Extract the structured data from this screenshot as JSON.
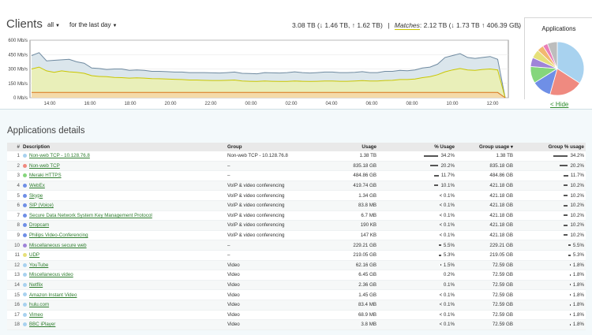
{
  "header": {
    "title": "Clients",
    "filter_all": "all",
    "filter_time": "for the last day",
    "totals_prefix": "3.08 TB (↓ 1.46 TB, ↑ 1.62 TB)",
    "sep": "|",
    "matches_label": "Matches",
    "matches_value": ": 2.12 TB (↓ 1.73 TB ↑ 406.39 GB)"
  },
  "chart_data": {
    "type": "area",
    "y_ticks": [
      "600 Mb/s",
      "450 Mb/s",
      "300 Mb/s",
      "150 Mb/s",
      "0 Mb/s"
    ],
    "ylim": [
      0,
      600
    ],
    "x_ticks": [
      "14:00",
      "16:00",
      "18:00",
      "20:00",
      "22:00",
      "00:00",
      "02:00",
      "04:00",
      "06:00",
      "08:00",
      "10:00",
      "12:00"
    ],
    "series": [
      {
        "values": [
          440,
          470,
          385,
          390,
          395,
          400,
          375,
          360,
          310,
          305,
          295,
          300,
          300,
          285,
          290,
          285,
          275,
          275,
          272,
          268,
          268,
          262,
          262,
          262,
          260,
          258,
          262,
          268,
          255,
          252,
          250,
          262,
          260,
          258,
          262,
          270,
          262,
          258,
          262,
          268,
          268,
          262,
          262,
          265,
          272,
          262,
          262,
          275,
          275,
          285,
          282,
          290,
          310,
          320,
          350,
          420,
          440,
          460,
          420,
          410,
          420,
          430,
          400,
          0
        ]
      },
      {
        "values": [
          300,
          320,
          280,
          265,
          280,
          270,
          265,
          255,
          230,
          222,
          220,
          212,
          210,
          205,
          208,
          205,
          200,
          198,
          195,
          192,
          190,
          185,
          185,
          182,
          180,
          180,
          182,
          185,
          175,
          172,
          170,
          175,
          172,
          170,
          170,
          175,
          172,
          170,
          172,
          175,
          175,
          172,
          172,
          175,
          178,
          175,
          175,
          180,
          182,
          190,
          190,
          195,
          210,
          220,
          240,
          270,
          290,
          305,
          290,
          285,
          295,
          300,
          290,
          0
        ]
      },
      {
        "values": [
          55,
          55,
          55,
          55,
          55,
          55,
          55,
          55,
          55,
          55,
          55,
          55,
          55,
          55,
          55,
          55,
          55,
          55,
          55,
          55,
          55,
          55,
          55,
          55,
          55,
          55,
          55,
          55,
          55,
          55,
          55,
          55,
          55,
          55,
          55,
          55,
          55,
          55,
          55,
          55,
          55,
          55,
          55,
          55,
          55,
          55,
          55,
          55,
          55,
          55,
          55,
          55,
          55,
          55,
          55,
          55,
          55,
          55,
          55,
          55,
          55,
          55,
          55,
          0
        ]
      }
    ]
  },
  "pie": {
    "title": "Applications",
    "slices": [
      {
        "value": 34.2,
        "color": "#a8d2ef"
      },
      {
        "value": 20.2,
        "color": "#ef8a80"
      },
      {
        "value": 11.7,
        "color": "#6f8fe6"
      },
      {
        "value": 10.1,
        "color": "#85d67c"
      },
      {
        "value": 5.5,
        "color": "#9f84d8"
      },
      {
        "value": 5.3,
        "color": "#e6e07a"
      },
      {
        "value": 4.0,
        "color": "#f2b870"
      },
      {
        "value": 3.0,
        "color": "#e97fb9"
      },
      {
        "value": 6.0,
        "color": "#bdbdbd"
      }
    ]
  },
  "hide_label": "< Hide",
  "details": {
    "title": "Applications details",
    "columns": {
      "num": "#",
      "desc": "Description",
      "group": "Group",
      "usage": "Usage",
      "pct_usage": "% Usage",
      "group_usage": "Group usage ▾",
      "group_pct": "Group % usage"
    },
    "rows": [
      {
        "n": "1",
        "color": "#a8d2ef",
        "desc": "Non-web TCP - 10.128.76.8",
        "group": "Non-web TCP - 10.128.76.8",
        "usage": "1.38 TB",
        "pct": "34.2%",
        "bar": 34.2,
        "gusage": "1.38 TB",
        "gpct": "34.2%",
        "gbar": 34.2
      },
      {
        "n": "2",
        "color": "#ef8a80",
        "desc": "Non-web TCP",
        "group": "–",
        "usage": "835.18 GB",
        "pct": "20.2%",
        "bar": 20.2,
        "gusage": "835.18 GB",
        "gpct": "20.2%",
        "gbar": 20.2
      },
      {
        "n": "3",
        "color": "#85d67c",
        "desc": "Meraki HTTPS",
        "group": "–",
        "usage": "484.86 GB",
        "pct": "11.7%",
        "bar": 11.7,
        "gusage": "484.86 GB",
        "gpct": "11.7%",
        "gbar": 11.7
      },
      {
        "n": "4",
        "color": "#6f8fe6",
        "desc": "WebEx",
        "group": "VoIP & video conferencing",
        "usage": "419.74 GB",
        "pct": "10.1%",
        "bar": 10.1,
        "gusage": "421.18 GB",
        "gpct": "10.2%",
        "gbar": 10.2
      },
      {
        "n": "5",
        "color": "#6f8fe6",
        "desc": "Skype",
        "group": "VoIP & video conferencing",
        "usage": "1.34 GB",
        "pct": "< 0.1%",
        "bar": 0,
        "gusage": "421.18 GB",
        "gpct": "10.2%",
        "gbar": 10.2
      },
      {
        "n": "6",
        "color": "#6f8fe6",
        "desc": "SIP (Voice)",
        "group": "VoIP & video conferencing",
        "usage": "83.8 MB",
        "pct": "< 0.1%",
        "bar": 0,
        "gusage": "421.18 GB",
        "gpct": "10.2%",
        "gbar": 10.2
      },
      {
        "n": "7",
        "color": "#6f8fe6",
        "desc": "Secure Data Network System Key Management Protocol",
        "group": "VoIP & video conferencing",
        "usage": "6.7 MB",
        "pct": "< 0.1%",
        "bar": 0,
        "gusage": "421.18 GB",
        "gpct": "10.2%",
        "gbar": 10.2
      },
      {
        "n": "8",
        "color": "#6f8fe6",
        "desc": "Dropcam",
        "group": "VoIP & video conferencing",
        "usage": "190 KB",
        "pct": "< 0.1%",
        "bar": 0,
        "gusage": "421.18 GB",
        "gpct": "10.2%",
        "gbar": 10.2
      },
      {
        "n": "9",
        "color": "#6f8fe6",
        "desc": "Philips Video-Conferencing",
        "group": "VoIP & video conferencing",
        "usage": "147 KB",
        "pct": "< 0.1%",
        "bar": 0,
        "gusage": "421.18 GB",
        "gpct": "10.2%",
        "gbar": 10.2
      },
      {
        "n": "10",
        "color": "#9f84d8",
        "desc": "Miscellaneous secure web",
        "group": "–",
        "usage": "229.21 GB",
        "pct": "5.5%",
        "bar": 5.5,
        "gusage": "229.21 GB",
        "gpct": "5.5%",
        "gbar": 5.5
      },
      {
        "n": "11",
        "color": "#e6e07a",
        "desc": "UDP",
        "group": "–",
        "usage": "219.05 GB",
        "pct": "5.3%",
        "bar": 5.3,
        "gusage": "219.05 GB",
        "gpct": "5.3%",
        "gbar": 5.3
      },
      {
        "n": "12",
        "color": "#a8d2ef",
        "desc": "YouTube",
        "group": "Video",
        "usage": "62.16 GB",
        "pct": "1.5%",
        "bar": 1.5,
        "gusage": "72.59 GB",
        "gpct": "1.8%",
        "gbar": 1.8
      },
      {
        "n": "13",
        "color": "#a8d2ef",
        "desc": "Miscellaneous video",
        "group": "Video",
        "usage": "6.45 GB",
        "pct": "0.2%",
        "bar": 0,
        "gusage": "72.59 GB",
        "gpct": "1.8%",
        "gbar": 1.8
      },
      {
        "n": "14",
        "color": "#a8d2ef",
        "desc": "Netflix",
        "group": "Video",
        "usage": "2.36 GB",
        "pct": "0.1%",
        "bar": 0,
        "gusage": "72.59 GB",
        "gpct": "1.8%",
        "gbar": 1.8
      },
      {
        "n": "15",
        "color": "#a8d2ef",
        "desc": "Amazon Instant Video",
        "group": "Video",
        "usage": "1.45 GB",
        "pct": "< 0.1%",
        "bar": 0,
        "gusage": "72.59 GB",
        "gpct": "1.8%",
        "gbar": 1.8
      },
      {
        "n": "16",
        "color": "#a8d2ef",
        "desc": "hulu.com",
        "group": "Video",
        "usage": "83.4 MB",
        "pct": "< 0.1%",
        "bar": 0,
        "gusage": "72.59 GB",
        "gpct": "1.8%",
        "gbar": 1.8
      },
      {
        "n": "17",
        "color": "#a8d2ef",
        "desc": "Vimeo",
        "group": "Video",
        "usage": "68.9 MB",
        "pct": "< 0.1%",
        "bar": 0,
        "gusage": "72.59 GB",
        "gpct": "1.8%",
        "gbar": 1.8
      },
      {
        "n": "18",
        "color": "#a8d2ef",
        "desc": "BBC iPlayer",
        "group": "Video",
        "usage": "3.8 MB",
        "pct": "< 0.1%",
        "bar": 0,
        "gusage": "72.59 GB",
        "gpct": "1.8%",
        "gbar": 1.8
      }
    ]
  }
}
